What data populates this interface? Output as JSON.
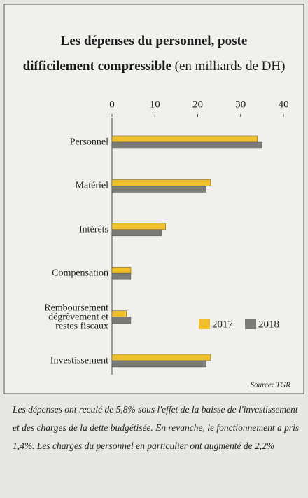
{
  "chart_data": {
    "type": "hbar",
    "title": [
      "Les dépenses du personnel, poste",
      "difficilement compressible"
    ],
    "subtitle": "(en milliards de DH)",
    "categories": [
      "Personnel",
      "Matériel",
      "Intérêts",
      "Compensation",
      "Remboursement\ndégrèvement et\nrestes fiscaux",
      "Investissement"
    ],
    "series": [
      {
        "name": "2017",
        "color": "#f0c02c",
        "values": [
          33.9,
          23,
          12.5,
          4.4,
          3.4,
          23
        ]
      },
      {
        "name": "2018",
        "color": "#7a7a76",
        "values": [
          35,
          22,
          11.6,
          4.4,
          4.4,
          22
        ]
      }
    ],
    "xlim": [
      0,
      40
    ],
    "xticks": [
      0,
      10,
      20,
      30,
      40
    ],
    "source": "Source: TGR",
    "caption": "Les dépenses ont reculé de 5,8% sous l'effet de la baisse de l'investissement et des charges de la dette budgétisée. En revanche, le fonctionnement a pris 1,4%. Les charges du personnel en particulier ont augmenté de 2,2%"
  }
}
